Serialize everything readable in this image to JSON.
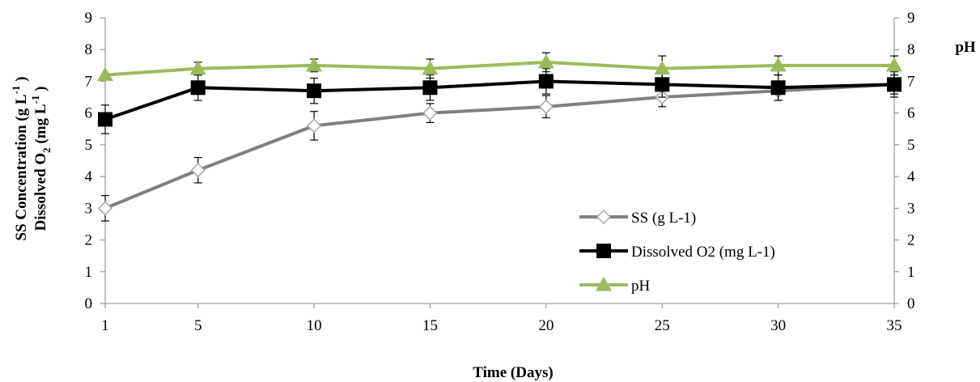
{
  "chart_data": {
    "type": "line",
    "x": [
      1,
      5,
      10,
      15,
      20,
      25,
      30,
      35
    ],
    "x_tick_labels": [
      "1",
      "5",
      "10",
      "15",
      "20",
      "25",
      "30",
      "35"
    ],
    "xlabel": "Time (Days)",
    "ylabel_left_line1": "SS Concentration (g L",
    "ylabel_left_line2": "Dissolved O",
    "ylabel_left_line2_sub": "2",
    "ylabel_left_line2_rest": " (mg L",
    "ylabel_sup": "-1",
    "ylabel_close": " )",
    "ylabel_right": "pH",
    "ylim_left": [
      0,
      9
    ],
    "ylim_right": [
      0,
      9
    ],
    "y_ticks": [
      "0",
      "1",
      "2",
      "3",
      "4",
      "5",
      "6",
      "7",
      "8",
      "9"
    ],
    "grid": false,
    "legend_position": "lower-right",
    "series": [
      {
        "name": "SS (g L-1)",
        "axis": "left",
        "marker": "diamond",
        "color": "#808080",
        "values": [
          3.0,
          4.2,
          5.6,
          6.0,
          6.2,
          6.5,
          6.7,
          6.9
        ],
        "errors": [
          0.4,
          0.4,
          0.45,
          0.3,
          0.35,
          0.3,
          0.3,
          0.3
        ]
      },
      {
        "name": "Dissolved O2 (mg L-1)",
        "axis": "left",
        "marker": "square",
        "color": "#000000",
        "values": [
          5.8,
          6.8,
          6.7,
          6.8,
          7.0,
          6.9,
          6.8,
          6.9
        ],
        "errors": [
          0.45,
          0.4,
          0.4,
          0.4,
          0.4,
          0.4,
          0.4,
          0.4
        ]
      },
      {
        "name": "pH",
        "axis": "right",
        "marker": "triangle",
        "color": "#9bbb59",
        "values": [
          7.2,
          7.4,
          7.5,
          7.4,
          7.6,
          7.4,
          7.5,
          7.5
        ],
        "errors": [
          0.0,
          0.2,
          0.2,
          0.3,
          0.3,
          0.4,
          0.3,
          0.3
        ]
      }
    ]
  }
}
